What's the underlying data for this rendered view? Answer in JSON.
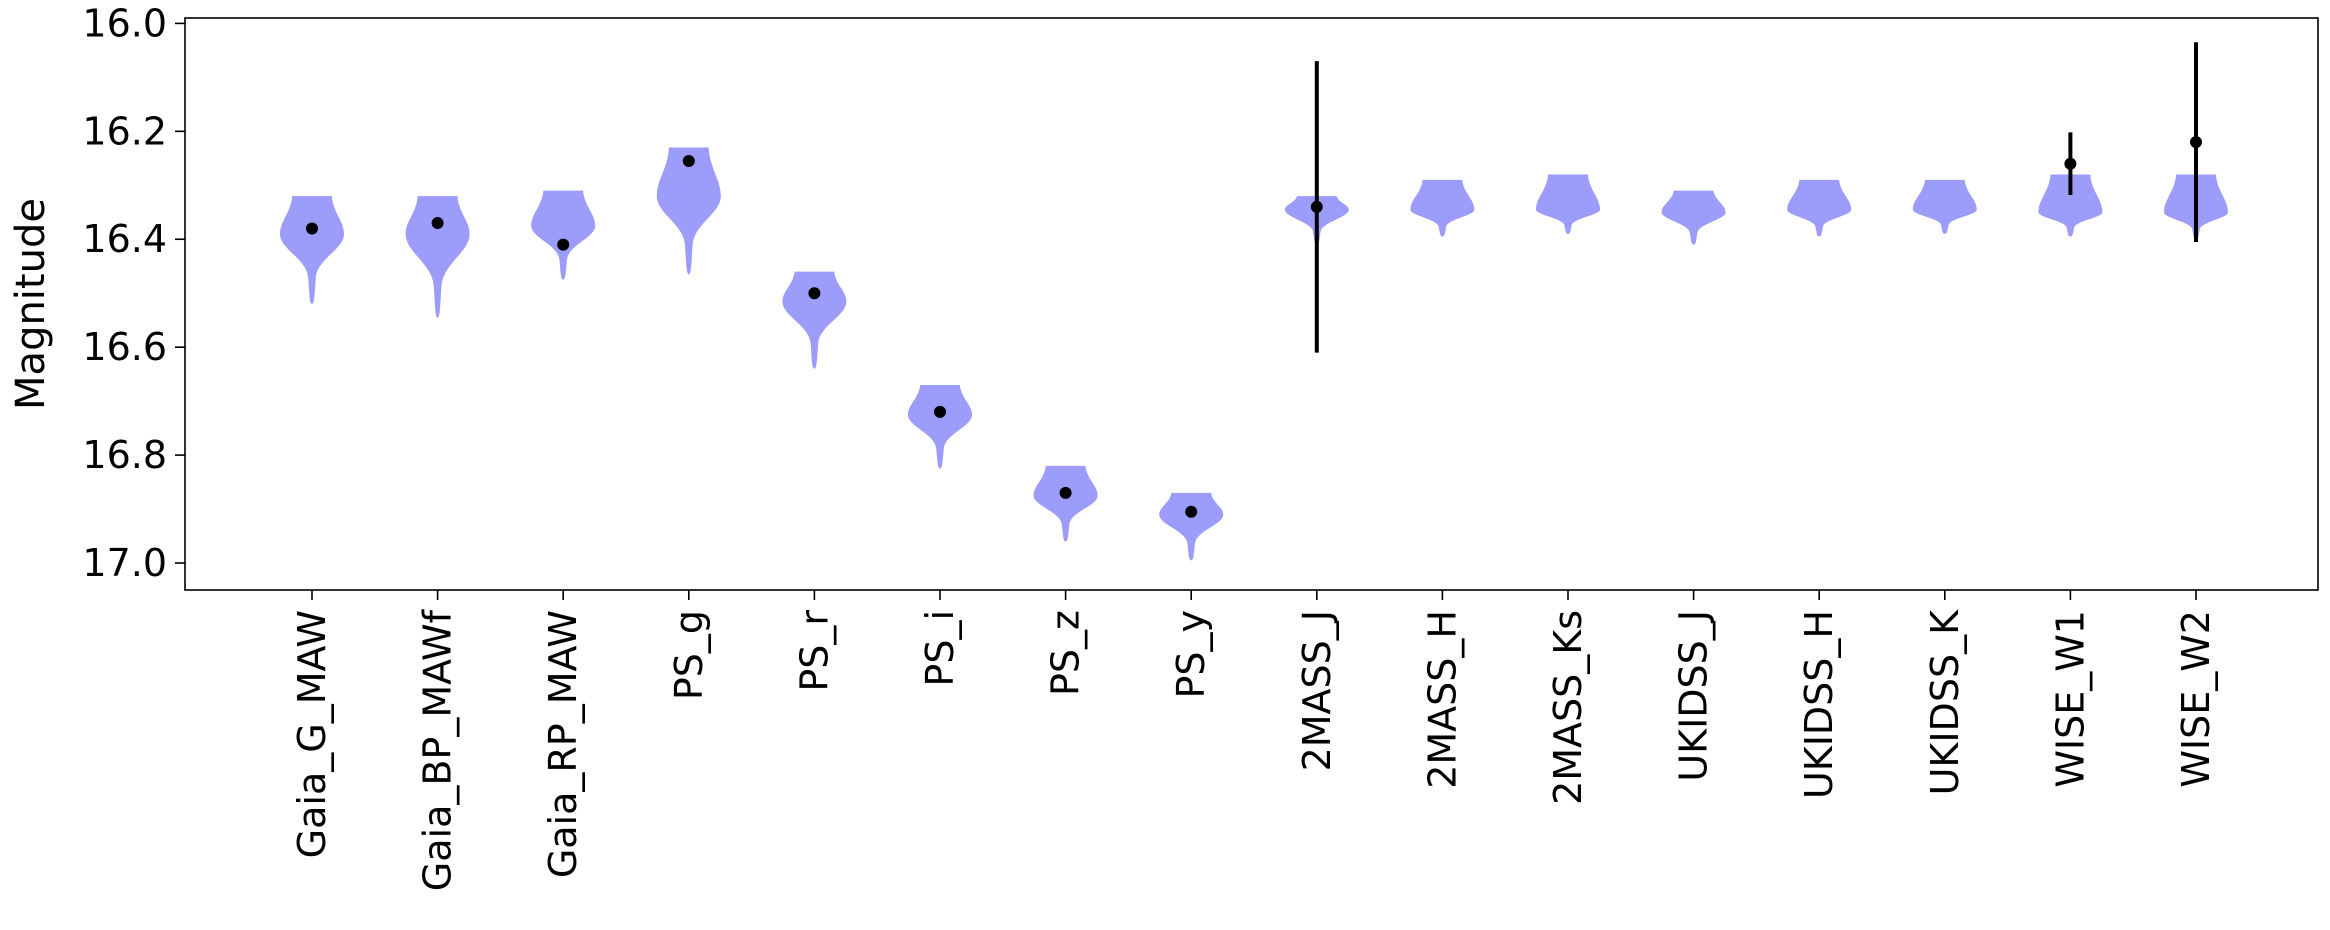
{
  "chart_data": {
    "type": "violin",
    "xlabel": "",
    "ylabel": "Magnitude",
    "y_inverted": true,
    "ylim": [
      17.05,
      15.99
    ],
    "yticks": [
      "16.0",
      "16.2",
      "16.4",
      "16.6",
      "16.8",
      "17.0"
    ],
    "grid": false,
    "colors": {
      "violin": "#9c9cfa",
      "marker": "#000000",
      "axis": "#000000"
    },
    "categories": [
      "Gaia_G_MAW",
      "Gaia_BP_MAWf",
      "Gaia_RP_MAW",
      "PS_g",
      "PS_r",
      "PS_i",
      "PS_z",
      "PS_y",
      "2MASS_J",
      "2MASS_H",
      "2MASS_Ks",
      "UKIDSS_J",
      "UKIDSS_H",
      "UKIDSS_K",
      "WISE_W1",
      "WISE_W2"
    ],
    "series": [
      {
        "observed": [
          16.38,
          16.37,
          16.41,
          16.255,
          16.5,
          16.72,
          16.87,
          16.905,
          16.34,
          null,
          null,
          null,
          null,
          null,
          16.26,
          16.22
        ],
        "error": [
          0.01,
          0.01,
          0.01,
          0.01,
          0.01,
          0.01,
          0.01,
          0.01,
          0.27,
          null,
          null,
          null,
          null,
          null,
          0.058,
          0.185
        ],
        "violin_min": [
          16.32,
          16.32,
          16.31,
          16.23,
          16.46,
          16.67,
          16.82,
          16.87,
          16.32,
          16.29,
          16.28,
          16.31,
          16.29,
          16.29,
          16.28,
          16.28
        ],
        "violin_max": [
          16.52,
          16.545,
          16.475,
          16.465,
          16.64,
          16.825,
          16.96,
          16.995,
          16.41,
          16.395,
          16.39,
          16.41,
          16.395,
          16.39,
          16.395,
          16.4
        ],
        "violin_peak": [
          16.39,
          16.39,
          16.375,
          16.32,
          16.515,
          16.725,
          16.875,
          16.91,
          16.345,
          16.345,
          16.345,
          16.35,
          16.345,
          16.345,
          16.35,
          16.35
        ]
      }
    ]
  }
}
